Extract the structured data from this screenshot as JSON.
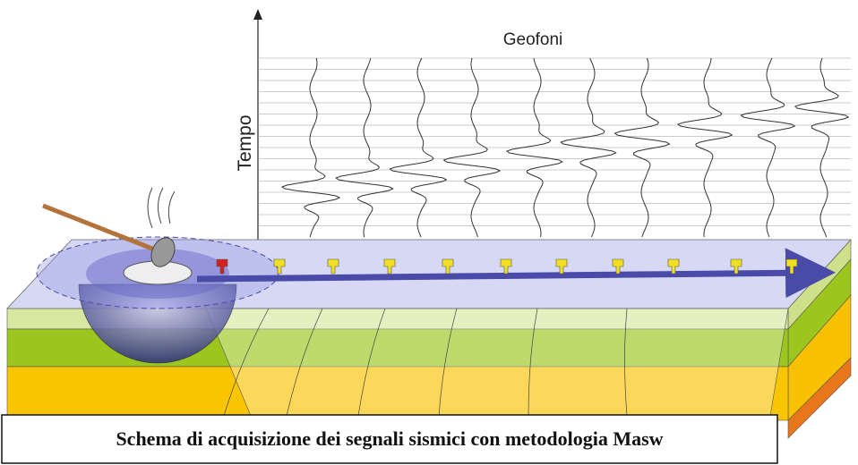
{
  "labels": {
    "x_axis": "Geofoni",
    "y_axis": "Tempo"
  },
  "caption": "Schema di acquisizione dei segnali sismici con metodologia Masw"
}
